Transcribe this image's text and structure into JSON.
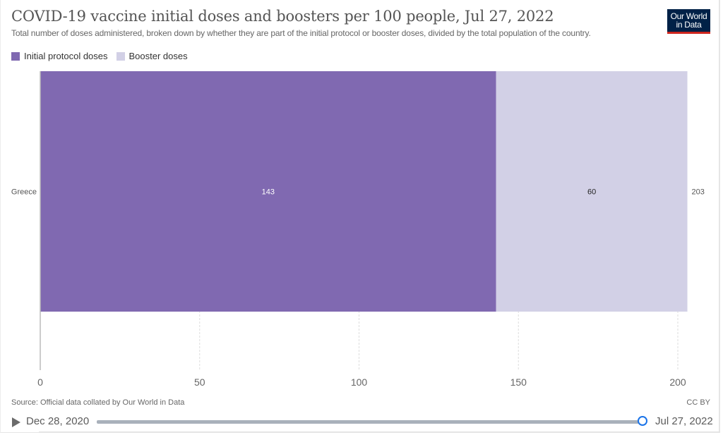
{
  "header": {
    "title": "COVID-19 vaccine initial doses and boosters per 100 people, Jul 27, 2022",
    "subtitle": "Total number of doses administered, broken down by whether they are part of the initial protocol or booster doses, divided by the total population of the country.",
    "logo_line1": "Our World",
    "logo_line2": "in Data"
  },
  "legend": [
    {
      "label": "Initial protocol doses",
      "color": "#8069b1"
    },
    {
      "label": "Booster doses",
      "color": "#d2d0e6"
    }
  ],
  "chart_data": {
    "type": "bar",
    "orientation": "horizontal",
    "stacked": true,
    "title": "COVID-19 vaccine initial doses and boosters per 100 people, Jul 27, 2022",
    "categories": [
      "Greece"
    ],
    "series": [
      {
        "name": "Initial protocol doses",
        "values": [
          143
        ],
        "color": "#8069b1",
        "label_color": "#ffffff"
      },
      {
        "name": "Booster doses",
        "values": [
          60
        ],
        "color": "#d2d0e6",
        "label_color": "#222222"
      }
    ],
    "totals": [
      203
    ],
    "xlim": [
      0,
      203
    ],
    "xticks": [
      0,
      50,
      100,
      150,
      200
    ],
    "xlabel": "",
    "ylabel": "",
    "grid": "vertical dashed",
    "legend_position": "top-left"
  },
  "footer": {
    "source": "Source: Official data collated by Our World in Data",
    "license": "CC BY"
  },
  "timeline": {
    "start_date": "Dec 28, 2020",
    "end_date": "Jul 27, 2022",
    "position_fraction": 1.0
  }
}
